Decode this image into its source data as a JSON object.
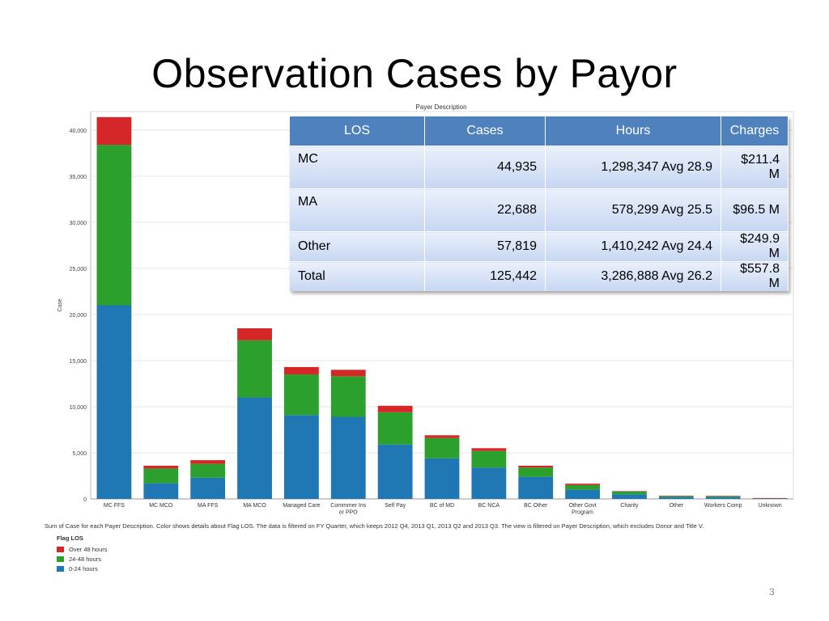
{
  "slide": {
    "title": "Observation Cases by Payor",
    "page_number": "3"
  },
  "chart_data": {
    "type": "bar",
    "stacked": true,
    "title": "Payer Description",
    "ylabel": "Case",
    "xlabel": "",
    "ylim": [
      0,
      42000
    ],
    "yticks": [
      0,
      5000,
      10000,
      15000,
      20000,
      25000,
      30000,
      35000,
      40000
    ],
    "ytick_labels": [
      "0",
      "5,000",
      "10,000",
      "15,000",
      "20,000",
      "25,000",
      "30,000",
      "35,000",
      "40,000"
    ],
    "categories": [
      "MC FFS",
      "MC MCO",
      "MA FFS",
      "MA MCO",
      "Managed Care",
      "Commmer Ins or PPO",
      "Self Pay",
      "BC of MD",
      "BC NCA",
      "BC Other",
      "Other Govt Program",
      "Charity",
      "Other",
      "Workers Comp",
      "Unknown"
    ],
    "series": [
      {
        "name": "0-24 hours",
        "color": "#1f77b4",
        "values": [
          21000,
          1700,
          2300,
          11000,
          9100,
          8900,
          5900,
          4400,
          3400,
          2400,
          1000,
          500,
          200,
          200,
          50
        ]
      },
      {
        "name": "24-48 hours",
        "color": "#2ca02c",
        "values": [
          17400,
          1600,
          1500,
          6200,
          4400,
          4400,
          3500,
          2200,
          1800,
          1000,
          500,
          300,
          100,
          100,
          30
        ]
      },
      {
        "name": "Over 48 hours",
        "color": "#d62728",
        "values": [
          3000,
          300,
          400,
          1300,
          800,
          700,
          700,
          300,
          300,
          200,
          150,
          50,
          50,
          40,
          20
        ]
      }
    ],
    "legend": {
      "title": "Flag LOS",
      "placement": "bottom-left",
      "order": [
        "Over 48 hours",
        "24-48 hours",
        "0-24 hours"
      ]
    },
    "grid": "horizontal",
    "footnote": "Sum of Case for each Payer Description.  Color shows details about Flag LOS. The data is filtered on FY Quarter, which keeps 2012 Q4, 2013 Q1, 2013 Q2 and 2013 Q3. The view is filtered on Payer Description, which excludes Donor and Title V."
  },
  "summary_table": {
    "headers": [
      "LOS",
      "Cases",
      "Hours",
      "Charges"
    ],
    "rows": [
      [
        "MC",
        "44,935",
        "1,298,347 Avg  28.9",
        "$211.4 M"
      ],
      [
        "MA",
        "22,688",
        "578,299 Avg 25.5",
        "$96.5 M"
      ],
      [
        "Other",
        "57,819",
        "1,410,242 Avg 24.4",
        "$249.9 M"
      ],
      [
        "Total",
        "125,442",
        "3,286,888 Avg 26.2",
        "$557.8 M"
      ]
    ]
  }
}
